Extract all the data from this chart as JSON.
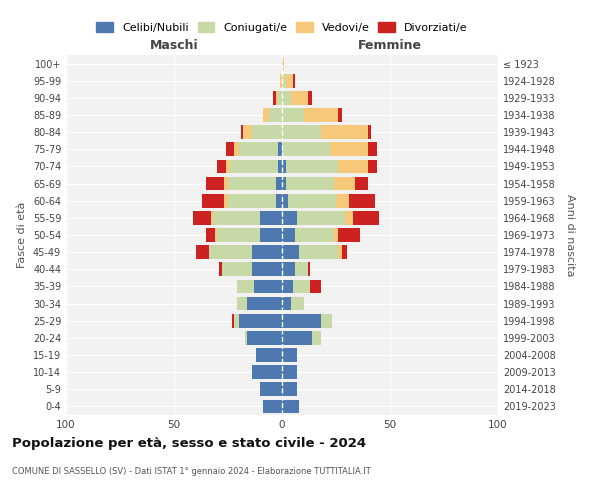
{
  "age_groups": [
    "0-4",
    "5-9",
    "10-14",
    "15-19",
    "20-24",
    "25-29",
    "30-34",
    "35-39",
    "40-44",
    "45-49",
    "50-54",
    "55-59",
    "60-64",
    "65-69",
    "70-74",
    "75-79",
    "80-84",
    "85-89",
    "90-94",
    "95-99",
    "100+"
  ],
  "birth_years": [
    "2019-2023",
    "2014-2018",
    "2009-2013",
    "2004-2008",
    "1999-2003",
    "1994-1998",
    "1989-1993",
    "1984-1988",
    "1979-1983",
    "1974-1978",
    "1969-1973",
    "1964-1968",
    "1959-1963",
    "1954-1958",
    "1949-1953",
    "1944-1948",
    "1939-1943",
    "1934-1938",
    "1929-1933",
    "1924-1928",
    "≤ 1923"
  ],
  "colors": {
    "celibi": "#4E78B0",
    "coniugati": "#C8D9A8",
    "vedovi": "#F5C87A",
    "divorziati": "#CC2222"
  },
  "males": {
    "celibi": [
      9,
      10,
      14,
      12,
      16,
      20,
      16,
      13,
      14,
      14,
      10,
      10,
      3,
      3,
      2,
      2,
      0,
      0,
      0,
      0,
      0
    ],
    "coniugati": [
      0,
      0,
      0,
      0,
      1,
      2,
      5,
      8,
      14,
      20,
      20,
      22,
      22,
      22,
      22,
      18,
      14,
      6,
      2,
      0,
      0
    ],
    "vedovi": [
      0,
      0,
      0,
      0,
      0,
      0,
      0,
      0,
      0,
      0,
      1,
      1,
      2,
      2,
      2,
      2,
      4,
      3,
      1,
      1,
      0
    ],
    "divorziati": [
      0,
      0,
      0,
      0,
      0,
      1,
      0,
      0,
      1,
      6,
      4,
      8,
      10,
      8,
      4,
      4,
      1,
      0,
      1,
      0,
      0
    ]
  },
  "females": {
    "nubili": [
      8,
      7,
      7,
      7,
      14,
      18,
      4,
      5,
      6,
      8,
      6,
      7,
      3,
      2,
      2,
      0,
      0,
      0,
      0,
      0,
      0
    ],
    "coniugate": [
      0,
      0,
      0,
      0,
      4,
      5,
      6,
      8,
      6,
      18,
      18,
      22,
      22,
      22,
      24,
      22,
      18,
      10,
      4,
      2,
      0
    ],
    "vedove": [
      0,
      0,
      0,
      0,
      0,
      0,
      0,
      0,
      0,
      2,
      2,
      4,
      6,
      10,
      14,
      18,
      22,
      16,
      8,
      3,
      1
    ],
    "divorziate": [
      0,
      0,
      0,
      0,
      0,
      0,
      0,
      5,
      1,
      2,
      10,
      12,
      12,
      6,
      4,
      4,
      1,
      2,
      2,
      1,
      0
    ]
  },
  "xlim": 100,
  "title": "Popolazione per età, sesso e stato civile - 2024",
  "subtitle": "COMUNE DI SASSELLO (SV) - Dati ISTAT 1° gennaio 2024 - Elaborazione TUTTITALIA.IT",
  "ylabel_left": "Fasce di età",
  "ylabel_right": "Anni di nascita",
  "xlabel_left": "Maschi",
  "xlabel_right": "Femmine"
}
